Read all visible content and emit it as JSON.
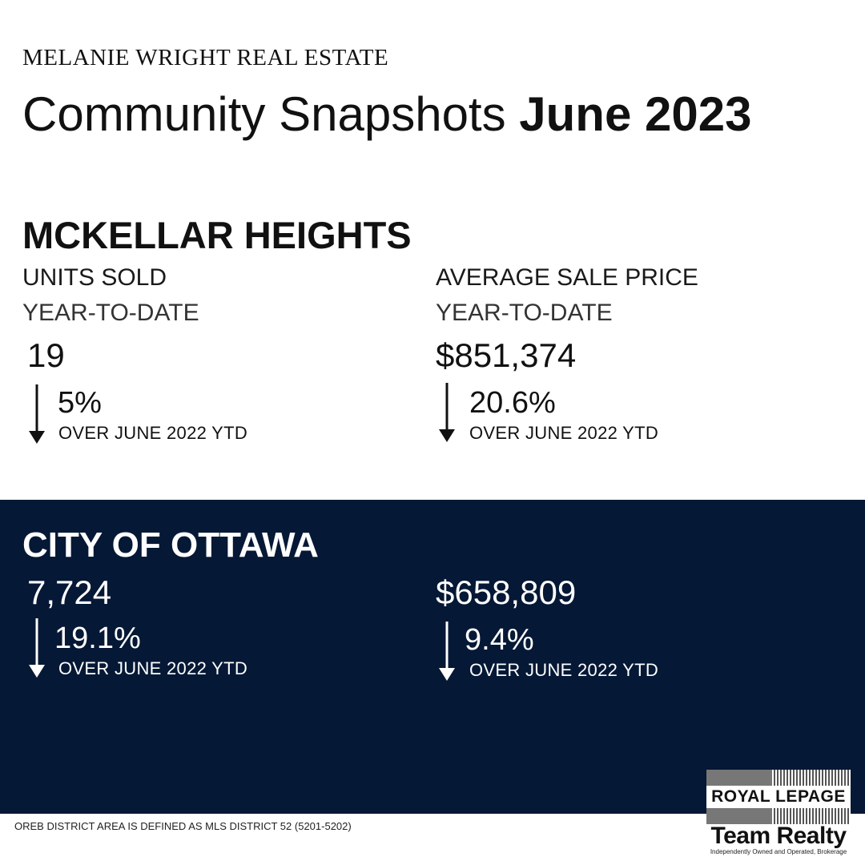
{
  "header": {
    "brand": "MELANIE WRIGHT REAL ESTATE",
    "title_regular": "Community Snapshots",
    "title_bold": "June 2023"
  },
  "community": {
    "name": "MCKELLAR HEIGHTS",
    "units": {
      "label": "UNITS SOLD",
      "period": "YEAR-TO-DATE",
      "value": "19",
      "change_pct": "5%",
      "direction": "down",
      "compare": "OVER JUNE 2022 YTD"
    },
    "price": {
      "label": "AVERAGE SALE PRICE",
      "period": "YEAR-TO-DATE",
      "value": "$851,374",
      "change_pct": "20.6%",
      "direction": "down",
      "compare": "OVER JUNE 2022 YTD"
    }
  },
  "city": {
    "name": "CITY OF OTTAWA",
    "units": {
      "value": "7,724",
      "change_pct": "19.1%",
      "direction": "down",
      "compare": "OVER JUNE 2022 YTD"
    },
    "price": {
      "value": "$658,809",
      "change_pct": "9.4%",
      "direction": "down",
      "compare": "OVER JUNE 2022 YTD"
    }
  },
  "footnote": "OREB DISTRICT AREA IS DEFINED AS MLS DISTRICT 52 (5201-5202)",
  "logo": {
    "line1": "ROYAL LEPAGE",
    "line2": "Team Realty",
    "tagline": "Independently Owned and Operated, Brokerage"
  },
  "colors": {
    "navy_panel": "#051835",
    "text_dark": "#111111",
    "text_light": "#ffffff"
  }
}
